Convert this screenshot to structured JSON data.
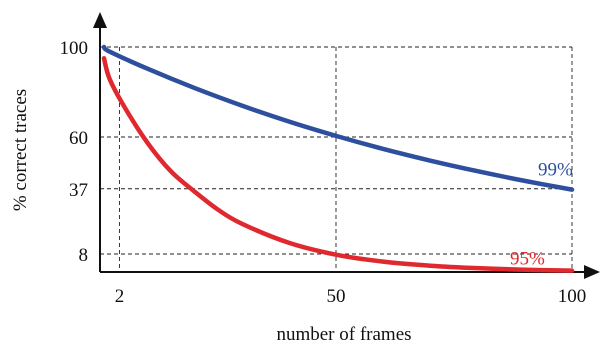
{
  "chart_data": {
    "type": "line",
    "title": "",
    "xlabel": "number of frames",
    "ylabel": "% correct traces",
    "xlim": [
      0,
      100
    ],
    "ylim": [
      0,
      100
    ],
    "x_ticks": [
      2,
      50,
      100
    ],
    "y_ticks": [
      8,
      37,
      60,
      100
    ],
    "grid": true,
    "series": [
      {
        "name": "99%",
        "color": "#2e4f9e",
        "x": [
          0,
          2,
          10,
          20,
          30,
          40,
          50,
          60,
          70,
          80,
          90,
          100
        ],
        "y": [
          100,
          98.0,
          90.4,
          81.8,
          74.0,
          66.9,
          60.5,
          54.7,
          49.5,
          44.8,
          40.5,
          36.6
        ]
      },
      {
        "name": "95%",
        "color": "#e0282f",
        "x": [
          0,
          2,
          5,
          10,
          15,
          20,
          25,
          30,
          40,
          50,
          60,
          70,
          80,
          90,
          100
        ],
        "y": [
          95,
          86.0,
          74.0,
          57.6,
          44.8,
          35.8,
          27.7,
          21.5,
          13.0,
          7.7,
          4.6,
          2.8,
          1.7,
          1.0,
          0.6
        ]
      }
    ]
  }
}
